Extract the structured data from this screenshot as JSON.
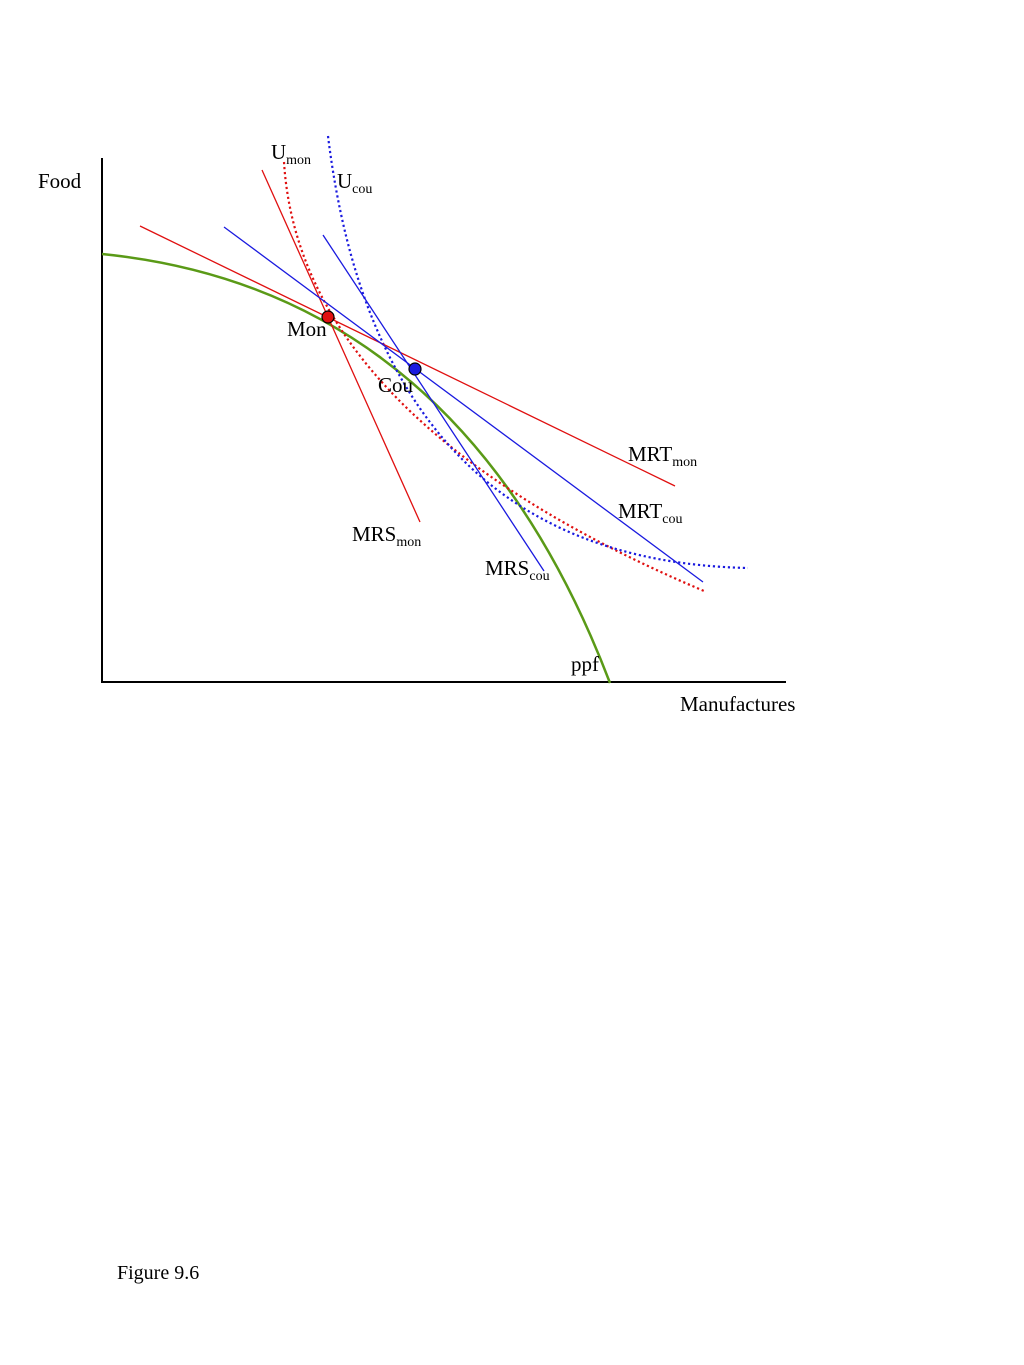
{
  "axes": {
    "y_label": "Food",
    "x_label": "Manufactures"
  },
  "curves": {
    "ppf": {
      "label": "ppf",
      "color": "#5a9a17"
    },
    "u_mon": {
      "label": "U",
      "sub": "mon",
      "color": "#e01010"
    },
    "u_cou": {
      "label": "U",
      "sub": "cou",
      "color": "#1a1adf"
    }
  },
  "lines": {
    "mrt_mon": {
      "label": "MRT",
      "sub": "mon",
      "color": "#e01010"
    },
    "mrs_mon": {
      "label": "MRS",
      "sub": "mon",
      "color": "#e01010"
    },
    "mrt_cou": {
      "label": "MRT",
      "sub": "cou",
      "color": "#1a1adf"
    },
    "mrs_cou": {
      "label": "MRS",
      "sub": "cou",
      "color": "#1a1adf"
    }
  },
  "points": {
    "mon": {
      "label": "Mon",
      "color": "#e01010"
    },
    "cou": {
      "label": "Cou",
      "color": "#1a1adf"
    }
  },
  "caption": "Figure 9.6"
}
